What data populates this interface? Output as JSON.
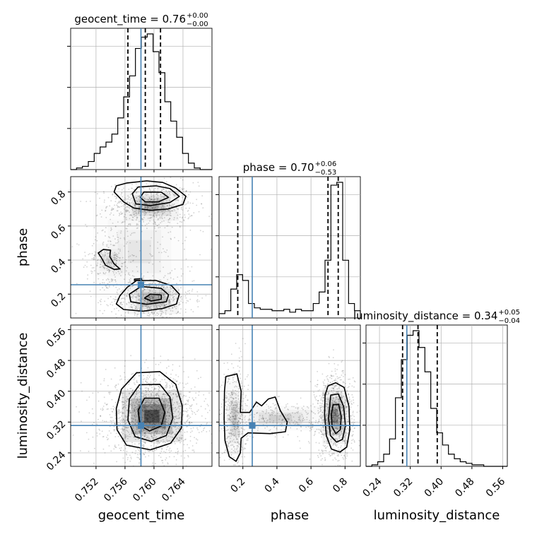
{
  "chart_data": {
    "type": "corner",
    "parameters": [
      "geocent_time",
      "phase",
      "luminosity_distance"
    ],
    "injection": {
      "geocent_time": 0.7582,
      "phase": 0.255,
      "luminosity_distance": 0.311
    },
    "axis_limits": {
      "geocent_time": [
        0.7485,
        0.768
      ],
      "phase": [
        0.06,
        0.89
      ],
      "luminosity_distance": [
        0.205,
        0.572
      ]
    },
    "ticks": {
      "geocent_time": {
        "values": [
          0.752,
          0.756,
          0.76,
          0.764
        ],
        "labels": [
          "0.752",
          "0.756",
          "0.760",
          "0.764"
        ]
      },
      "phase": {
        "values": [
          0.2,
          0.4,
          0.6,
          0.8
        ],
        "labels": [
          "0.2",
          "0.4",
          "0.6",
          "0.8"
        ]
      },
      "luminosity_distance": {
        "values": [
          0.24,
          0.32,
          0.4,
          0.48,
          0.56
        ],
        "labels": [
          "0.24",
          "0.32",
          "0.40",
          "0.48",
          "0.56"
        ]
      }
    },
    "titles": [
      {
        "param": "geocent_time",
        "main": "geocent_time = 0.76",
        "sup": "+0.00",
        "sub": "−0.00"
      },
      {
        "param": "phase",
        "main": "phase = 0.70",
        "sup": "+0.06",
        "sub": "−0.53"
      },
      {
        "param": "luminosity_distance",
        "main": "luminosity_distance = 0.34",
        "sup": "+0.05",
        "sub": "−0.04"
      }
    ],
    "quantiles": {
      "geocent_time": [
        0.7564,
        0.7588,
        0.7609
      ],
      "phase": [
        0.17,
        0.7,
        0.76
      ],
      "luminosity_distance": [
        0.3,
        0.34,
        0.39
      ]
    },
    "histograms": {
      "geocent_time": {
        "range": [
          0.7485,
          0.768
        ],
        "counts": [
          0,
          1,
          2,
          5,
          10,
          14,
          17,
          22,
          32,
          45,
          58,
          75,
          82,
          84,
          73,
          60,
          42,
          30,
          20,
          10,
          4,
          1,
          0,
          0
        ]
      },
      "phase": {
        "range": [
          0.06,
          0.89
        ],
        "counts": [
          3,
          5,
          20,
          30,
          26,
          10,
          7,
          6,
          6,
          5,
          5,
          6,
          4,
          6,
          5,
          5,
          10,
          18,
          40,
          92,
          94,
          40,
          10,
          5
        ]
      },
      "luminosity_distance": {
        "range": [
          0.205,
          0.572
        ],
        "counts": [
          0,
          1,
          3,
          8,
          18,
          45,
          70,
          86,
          89,
          78,
          62,
          38,
          22,
          14,
          8,
          5,
          3,
          2,
          1,
          1,
          0,
          0,
          0,
          0
        ]
      }
    },
    "scatter_regions": [
      {
        "x": "geocent_time",
        "y": "phase",
        "blobs": [
          {
            "cx": 0.7596,
            "cy": 0.72,
            "sx": 0.0024,
            "sy": 0.055,
            "w": 0.38
          },
          {
            "cx": 0.7599,
            "cy": 0.17,
            "sx": 0.0022,
            "sy": 0.055,
            "w": 0.38
          },
          {
            "cx": 0.7538,
            "cy": 0.4,
            "sx": 0.0012,
            "sy": 0.06,
            "w": 0.14
          },
          {
            "cx": 0.758,
            "cy": 0.45,
            "sx": 0.004,
            "sy": 0.17,
            "w": 0.1
          }
        ]
      },
      {
        "x": "geocent_time",
        "y": "luminosity_distance",
        "blobs": [
          {
            "cx": 0.7597,
            "cy": 0.335,
            "sx": 0.0026,
            "sy": 0.042,
            "w": 1.0
          }
        ]
      },
      {
        "x": "phase",
        "y": "luminosity_distance",
        "blobs": [
          {
            "cx": 0.74,
            "cy": 0.335,
            "sx": 0.045,
            "sy": 0.045,
            "w": 0.55
          },
          {
            "cx": 0.15,
            "cy": 0.33,
            "sx": 0.03,
            "sy": 0.06,
            "w": 0.25
          },
          {
            "cx": 0.42,
            "cy": 0.33,
            "sx": 0.17,
            "sy": 0.02,
            "w": 0.2
          }
        ]
      }
    ],
    "contours": [
      {
        "x": "geocent_time",
        "y": "phase",
        "paths": [
          {
            "level": "outer",
            "points": [
              [
                0.7563,
                0.853
              ],
              [
                0.759,
                0.865
              ],
              [
                0.7612,
                0.856
              ],
              [
                0.763,
                0.823
              ],
              [
                0.7644,
                0.775
              ],
              [
                0.764,
                0.727
              ],
              [
                0.7619,
                0.7
              ],
              [
                0.7595,
                0.692
              ],
              [
                0.7572,
                0.706
              ],
              [
                0.7558,
                0.742
              ],
              [
                0.7545,
                0.8
              ],
              [
                0.7548,
                0.836
              ]
            ]
          },
          {
            "level": "mid",
            "points": [
              [
                0.7578,
                0.829
              ],
              [
                0.7603,
                0.836
              ],
              [
                0.7622,
                0.82
              ],
              [
                0.7635,
                0.774
              ],
              [
                0.7622,
                0.738
              ],
              [
                0.7595,
                0.72
              ],
              [
                0.7575,
                0.73
              ],
              [
                0.757,
                0.79
              ]
            ]
          },
          {
            "level": "inner",
            "points": [
              [
                0.7586,
                0.8
              ],
              [
                0.761,
                0.799
              ],
              [
                0.762,
                0.768
              ],
              [
                0.7606,
                0.742
              ],
              [
                0.7588,
                0.742
              ],
              [
                0.7581,
                0.768
              ]
            ]
          },
          {
            "level": "outer",
            "points": [
              [
                0.7576,
                0.28
              ],
              [
                0.7603,
                0.28
              ],
              [
                0.7624,
                0.25
              ],
              [
                0.7635,
                0.2
              ],
              [
                0.7631,
                0.142
              ],
              [
                0.7612,
                0.116
              ],
              [
                0.7585,
                0.1
              ],
              [
                0.7558,
                0.11
              ],
              [
                0.7548,
                0.142
              ],
              [
                0.7553,
                0.19
              ],
              [
                0.7563,
                0.24
              ]
            ]
          },
          {
            "level": "mid",
            "points": [
              [
                0.7582,
                0.245
              ],
              [
                0.761,
                0.234
              ],
              [
                0.762,
                0.196
              ],
              [
                0.7617,
                0.155
              ],
              [
                0.759,
                0.14
              ],
              [
                0.7568,
                0.155
              ],
              [
                0.7566,
                0.2
              ]
            ]
          },
          {
            "level": "inner",
            "points": [
              [
                0.7595,
                0.2
              ],
              [
                0.761,
                0.195
              ],
              [
                0.761,
                0.17
              ],
              [
                0.7596,
                0.16
              ],
              [
                0.7587,
                0.176
              ]
            ]
          },
          {
            "level": "outer",
            "points": [
              [
                0.753,
                0.462
              ],
              [
                0.754,
                0.458
              ],
              [
                0.7539,
                0.42
              ],
              [
                0.7545,
                0.378
              ],
              [
                0.7553,
                0.348
              ],
              [
                0.7545,
                0.345
              ],
              [
                0.7533,
                0.37
              ],
              [
                0.7528,
                0.41
              ],
              [
                0.7523,
                0.442
              ]
            ]
          },
          {
            "level": "inner",
            "points": [
              [
                0.7573,
                0.288
              ],
              [
                0.7583,
                0.291
              ],
              [
                0.7583,
                0.282
              ],
              [
                0.7573,
                0.28
              ]
            ]
          }
        ]
      },
      {
        "x": "geocent_time",
        "y": "luminosity_distance",
        "paths": [
          {
            "level": "outer",
            "points": [
              [
                0.7576,
                0.448
              ],
              [
                0.7608,
                0.451
              ],
              [
                0.763,
                0.418
              ],
              [
                0.7639,
                0.362
              ],
              [
                0.7638,
                0.305
              ],
              [
                0.7623,
                0.265
              ],
              [
                0.7595,
                0.248
              ],
              [
                0.7562,
                0.26
              ],
              [
                0.7549,
                0.3
              ],
              [
                0.7548,
                0.355
              ],
              [
                0.7555,
                0.405
              ]
            ]
          },
          {
            "level": "mid",
            "points": [
              [
                0.758,
                0.417
              ],
              [
                0.7608,
                0.418
              ],
              [
                0.7622,
                0.385
              ],
              [
                0.7626,
                0.33
              ],
              [
                0.7617,
                0.285
              ],
              [
                0.7596,
                0.27
              ],
              [
                0.7574,
                0.282
              ],
              [
                0.7564,
                0.325
              ],
              [
                0.7566,
                0.38
              ]
            ]
          },
          {
            "level": "inner",
            "points": [
              [
                0.7587,
                0.382
              ],
              [
                0.7607,
                0.382
              ],
              [
                0.7615,
                0.345
              ],
              [
                0.761,
                0.31
              ],
              [
                0.7594,
                0.297
              ],
              [
                0.7581,
                0.31
              ],
              [
                0.7578,
                0.35
              ]
            ]
          }
        ]
      },
      {
        "x": "phase",
        "y": "luminosity_distance",
        "paths": [
          {
            "level": "outer",
            "points": [
              [
                0.7,
                0.414
              ],
              [
                0.745,
                0.422
              ],
              [
                0.795,
                0.41
              ],
              [
                0.823,
                0.36
              ],
              [
                0.828,
                0.3
              ],
              [
                0.81,
                0.255
              ],
              [
                0.77,
                0.242
              ],
              [
                0.72,
                0.25
              ],
              [
                0.69,
                0.285
              ],
              [
                0.68,
                0.34
              ],
              [
                0.683,
                0.39
              ]
            ]
          },
          {
            "level": "mid",
            "points": [
              [
                0.716,
                0.39
              ],
              [
                0.76,
                0.393
              ],
              [
                0.792,
                0.36
              ],
              [
                0.802,
                0.31
              ],
              [
                0.785,
                0.275
              ],
              [
                0.75,
                0.268
              ],
              [
                0.714,
                0.285
              ],
              [
                0.703,
                0.33
              ]
            ]
          },
          {
            "level": "inner",
            "points": [
              [
                0.73,
                0.365
              ],
              [
                0.762,
                0.366
              ],
              [
                0.778,
                0.335
              ],
              [
                0.772,
                0.3
              ],
              [
                0.745,
                0.29
              ],
              [
                0.724,
                0.308
              ],
              [
                0.72,
                0.34
              ]
            ]
          },
          {
            "level": "outer",
            "points": [
              [
                0.1,
                0.438
              ],
              [
                0.165,
                0.445
              ],
              [
                0.19,
                0.4
              ],
              [
                0.185,
                0.345
              ],
              [
                0.24,
                0.345
              ],
              [
                0.28,
                0.372
              ],
              [
                0.31,
                0.362
              ],
              [
                0.35,
                0.38
              ],
              [
                0.39,
                0.385
              ],
              [
                0.42,
                0.35
              ],
              [
                0.46,
                0.32
              ],
              [
                0.45,
                0.295
              ],
              [
                0.36,
                0.29
              ],
              [
                0.23,
                0.292
              ],
              [
                0.19,
                0.278
              ],
              [
                0.185,
                0.24
              ],
              [
                0.16,
                0.218
              ],
              [
                0.12,
                0.23
              ],
              [
                0.095,
                0.272
              ],
              [
                0.09,
                0.33
              ],
              [
                0.092,
                0.4
              ]
            ]
          }
        ]
      }
    ]
  }
}
